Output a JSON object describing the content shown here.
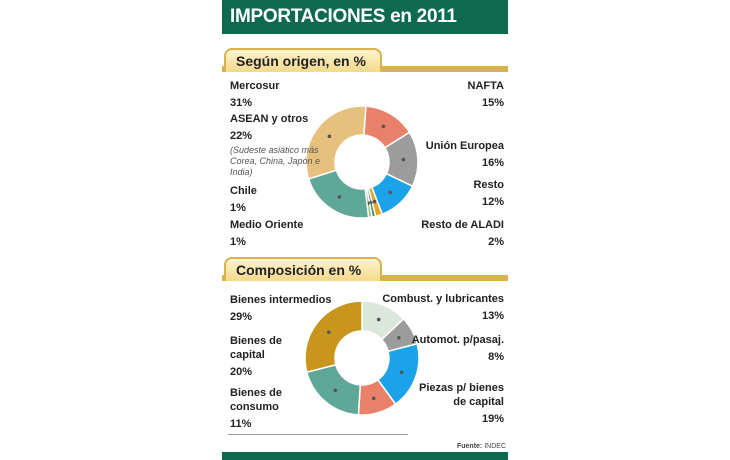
{
  "title": "IMPORTACIONES en 2011",
  "source_label": "Fuente:",
  "source": "INDEC",
  "chart_data": [
    {
      "type": "pie",
      "donut": true,
      "title": "Según origen, en %",
      "categories": [
        "NAFTA",
        "Unión Europea",
        "Resto",
        "Resto de ALADI",
        "Medio Oriente",
        "Chile",
        "ASEAN y otros",
        "Mercosur"
      ],
      "values": [
        15,
        16,
        12,
        2,
        1,
        1,
        22,
        31
      ],
      "labels": [
        "15%",
        "16%",
        "12%",
        "2%",
        "1%",
        "1%",
        "22%",
        "31%"
      ],
      "colors": [
        "#e8806a",
        "#9c9c9c",
        "#1aa3e8",
        "#e6a52a",
        "#2f8f6a",
        "#9ac27a",
        "#5fa898",
        "#e6c07d"
      ],
      "note": "(Sudeste asiático más Corea, China, Japón e India)"
    },
    {
      "type": "pie",
      "donut": true,
      "title": "Composición en %",
      "categories": [
        "Combust. y lubricantes",
        "Automot. p/pasaj.",
        "Piezas p/ bienes de capital",
        "Bienes de consumo",
        "Bienes de capital",
        "Bienes intermedios"
      ],
      "values": [
        13,
        8,
        19,
        11,
        20,
        29
      ],
      "labels": [
        "13%",
        "8%",
        "19%",
        "11%",
        "20%",
        "29%"
      ],
      "colors": [
        "#dbe6dc",
        "#9c9c9c",
        "#1aa3e8",
        "#e8806a",
        "#5fa898",
        "#c8961c"
      ]
    }
  ]
}
